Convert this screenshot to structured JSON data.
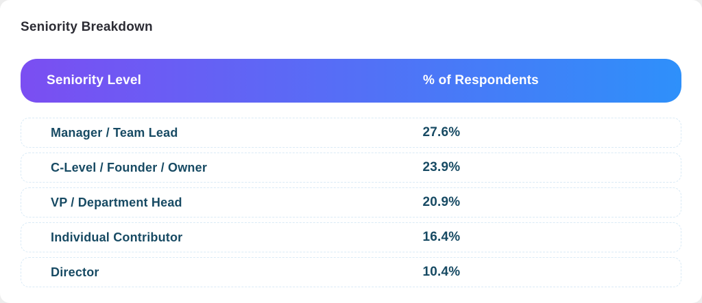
{
  "page": {
    "title": "Seniority Breakdown"
  },
  "table": {
    "columns": [
      "Seniority Level",
      "% of Respondents"
    ],
    "rows": [
      {
        "level": "Manager / Team Lead",
        "percent": "27.6%"
      },
      {
        "level": "C-Level / Founder / Owner",
        "percent": "23.9%"
      },
      {
        "level": "VP / Department Head",
        "percent": "20.9%"
      },
      {
        "level": "Individual Contributor",
        "percent": "16.4%"
      },
      {
        "level": "Director",
        "percent": "10.4%"
      }
    ]
  },
  "colors": {
    "header_gradient_start": "#7b4ef2",
    "header_gradient_end": "#2e90fa",
    "header_text": "#ffffff",
    "row_text": "#174a63",
    "row_border": "#d9eaf6",
    "title_text": "#2c2c34",
    "card_background": "#ffffff"
  },
  "chart_data": {
    "type": "table",
    "title": "Seniority Breakdown",
    "columns": [
      "Seniority Level",
      "% of Respondents"
    ],
    "categories": [
      "Manager / Team Lead",
      "C-Level / Founder / Owner",
      "VP / Department Head",
      "Individual Contributor",
      "Director"
    ],
    "values": [
      27.6,
      23.9,
      20.9,
      16.4,
      10.4
    ],
    "unit": "%"
  }
}
